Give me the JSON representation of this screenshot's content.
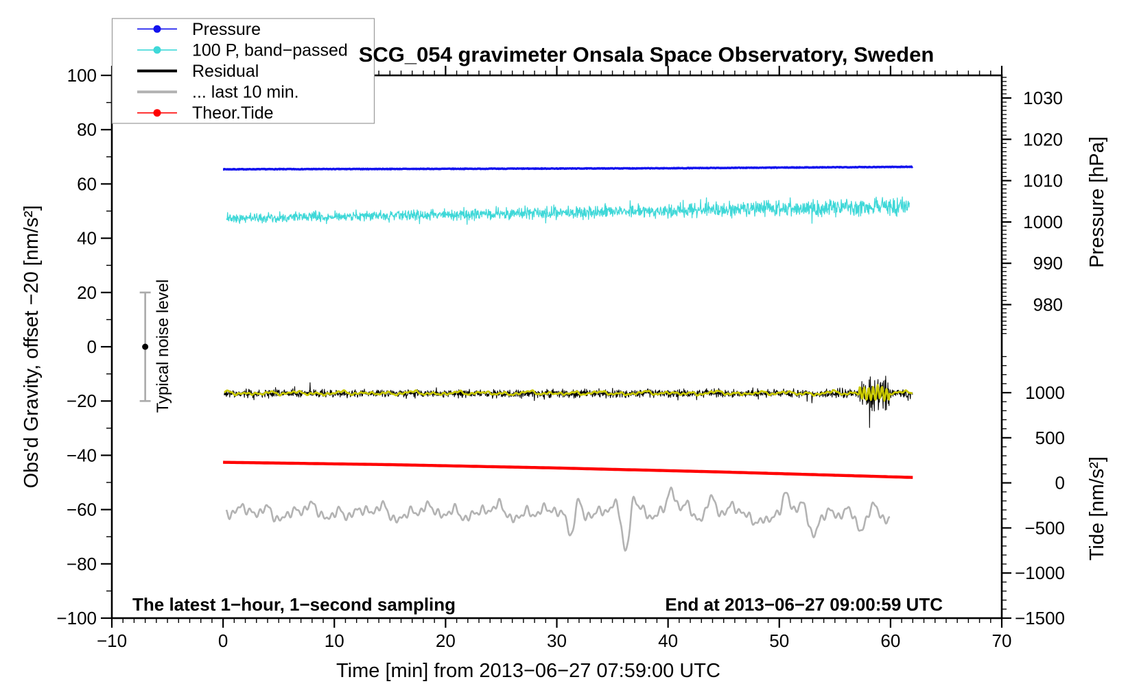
{
  "title": "SCG_054 gravimeter Onsala Space Observatory, Sweden",
  "annotations": {
    "sampling": "The latest 1−hour, 1−second sampling",
    "end": "End at 2013−06−27 09:00:59 UTC",
    "noise_label": "Typical noise level"
  },
  "legend": {
    "items": [
      {
        "label": "Pressure",
        "color": "#1212ee",
        "marker": true,
        "line_width": 1.6
      },
      {
        "label": "100 P, band−passed",
        "color": "#3fd8d8",
        "marker": true,
        "line_width": 1.6
      },
      {
        "label": "Residual",
        "color": "#000000",
        "marker": false,
        "line_width": 4.0
      },
      {
        "label": "... last 10 min.",
        "color": "#b3b3b3",
        "marker": false,
        "line_width": 4.0
      },
      {
        "label": "Theor.Tide",
        "color": "#ff0000",
        "marker": true,
        "line_width": 1.6
      }
    ]
  },
  "axes": {
    "x": {
      "label": "Time [min] from 2013−06−27 07:59:00 UTC",
      "min": -10,
      "max": 70,
      "minor_step": 1,
      "ticks": [
        {
          "v": -10,
          "label": "−10"
        },
        {
          "v": 0,
          "label": "0"
        },
        {
          "v": 10,
          "label": "10"
        },
        {
          "v": 20,
          "label": "20"
        },
        {
          "v": 30,
          "label": "30"
        },
        {
          "v": 40,
          "label": "40"
        },
        {
          "v": 50,
          "label": "50"
        },
        {
          "v": 60,
          "label": "60"
        },
        {
          "v": 70,
          "label": "70"
        }
      ]
    },
    "y_left": {
      "label": "Obs'd Gravity, offset −20 [nm/s²]",
      "min": -100,
      "max": 100,
      "minor_step": 10,
      "ticks": [
        {
          "v": 100,
          "label": "100"
        },
        {
          "v": 80,
          "label": "80"
        },
        {
          "v": 60,
          "label": "60"
        },
        {
          "v": 40,
          "label": "40"
        },
        {
          "v": 20,
          "label": "20"
        },
        {
          "v": 0,
          "label": "0"
        },
        {
          "v": -20,
          "label": "−20"
        },
        {
          "v": -40,
          "label": "−40"
        },
        {
          "v": -60,
          "label": "−60"
        },
        {
          "v": -80,
          "label": "−80"
        },
        {
          "v": -100,
          "label": "−100"
        }
      ]
    },
    "pressure": {
      "label": "Pressure [hPa]",
      "minor_step": 1,
      "minor_min": 973,
      "minor_max": 1035,
      "ticks": [
        {
          "v": 1030,
          "label": "1030"
        },
        {
          "v": 1020,
          "label": "1020"
        },
        {
          "v": 1010,
          "label": "1010"
        },
        {
          "v": 1000,
          "label": "1000"
        },
        {
          "v": 990,
          "label": "990"
        },
        {
          "v": 980,
          "label": "980"
        }
      ]
    },
    "tide": {
      "label": "Tide [nm/s²]",
      "minor_step": 100,
      "minor_min": -1500,
      "minor_max": 1400,
      "ticks": [
        {
          "v": 1000,
          "label": "1000"
        },
        {
          "v": 500,
          "label": "500"
        },
        {
          "v": 0,
          "label": "0"
        },
        {
          "v": -500,
          "label": "−500"
        },
        {
          "v": -1000,
          "label": "−1000"
        },
        {
          "v": -1500,
          "label": "−1500"
        }
      ]
    }
  },
  "chart_data": {
    "type": "line",
    "x_range_minutes": [
      0,
      62
    ],
    "grid": false,
    "legend_position": "top-left",
    "series": [
      {
        "name": "Pressure",
        "axis": "pressure",
        "color": "#1212ee",
        "width": 3.4,
        "kind": "anchors",
        "step": 0.05,
        "noise": 0.07,
        "anchors": [
          {
            "t": 0,
            "v": 1012.75
          },
          {
            "t": 20,
            "v": 1012.85
          },
          {
            "t": 40,
            "v": 1013.0
          },
          {
            "t": 62,
            "v": 1013.35
          }
        ]
      },
      {
        "name": "100 P, band−passed",
        "axis": "gravity",
        "color": "#3fd8d8",
        "width": 1.3,
        "kind": "hf",
        "t0": 0.3,
        "t1": 61.7,
        "step": 0.035,
        "c0": 47.3,
        "c1": 51.8,
        "a0": 2.6,
        "a1": 5.4,
        "tail": 0.025
      },
      {
        "name": "Residual",
        "axis": "gravity",
        "color": "#000000",
        "width": 1.1,
        "kind": "hf",
        "t0": 0.1,
        "t1": 62,
        "step": 0.033,
        "c0": -17.2,
        "c1": -17.2,
        "a0": 2.1,
        "a1": 2.4,
        "tail": 0.035,
        "burst": {
          "t0": 57.2,
          "t1": 59.9,
          "mult": 4.2
        }
      },
      {
        "name": "Residual smoothed",
        "axis": "gravity",
        "color": "#c9c900",
        "width": 2.8,
        "kind": "smooth",
        "t0": 0.1,
        "t1": 62,
        "step": 0.06,
        "center": -17.1,
        "amp": 0.55,
        "burst": {
          "t0": 57.2,
          "t1": 59.9,
          "amp": 2.4
        }
      },
      {
        "name": "... last 10 min.",
        "axis": "gravity",
        "color": "#b3b3b3",
        "width": 2.6,
        "kind": "smooth",
        "t0": 0.3,
        "t1": 60,
        "step": 0.07,
        "center": -61,
        "amp": 2.8,
        "features": [
          {
            "t": 31.3,
            "a": -13,
            "w": 0.28
          },
          {
            "t": 31.9,
            "a": 8,
            "w": 0.3
          },
          {
            "t": 36.2,
            "a": -14,
            "w": 0.3
          },
          {
            "t": 36.9,
            "a": 7,
            "w": 0.3
          },
          {
            "t": 40.3,
            "a": 7.5,
            "w": 0.35
          },
          {
            "t": 43.8,
            "a": 6.5,
            "w": 0.3
          },
          {
            "t": 48.0,
            "a": -6,
            "w": 0.35
          },
          {
            "t": 50.6,
            "a": 6.5,
            "w": 0.3
          },
          {
            "t": 53.0,
            "a": -7,
            "w": 0.35
          },
          {
            "t": 57.3,
            "a": -7,
            "w": 0.4
          }
        ]
      },
      {
        "name": "Theor.Tide",
        "axis": "tide",
        "color": "#ff0000",
        "width": 4.4,
        "kind": "anchors",
        "step": 0.25,
        "noise": 0,
        "anchors": [
          {
            "t": 0,
            "v": 228
          },
          {
            "t": 15,
            "v": 202
          },
          {
            "t": 30,
            "v": 165
          },
          {
            "t": 45,
            "v": 120
          },
          {
            "t": 62,
            "v": 60
          }
        ]
      }
    ],
    "noise_bar": {
      "t": -7,
      "center": 0,
      "half_range": 20,
      "color": "#aaaaaa"
    }
  }
}
